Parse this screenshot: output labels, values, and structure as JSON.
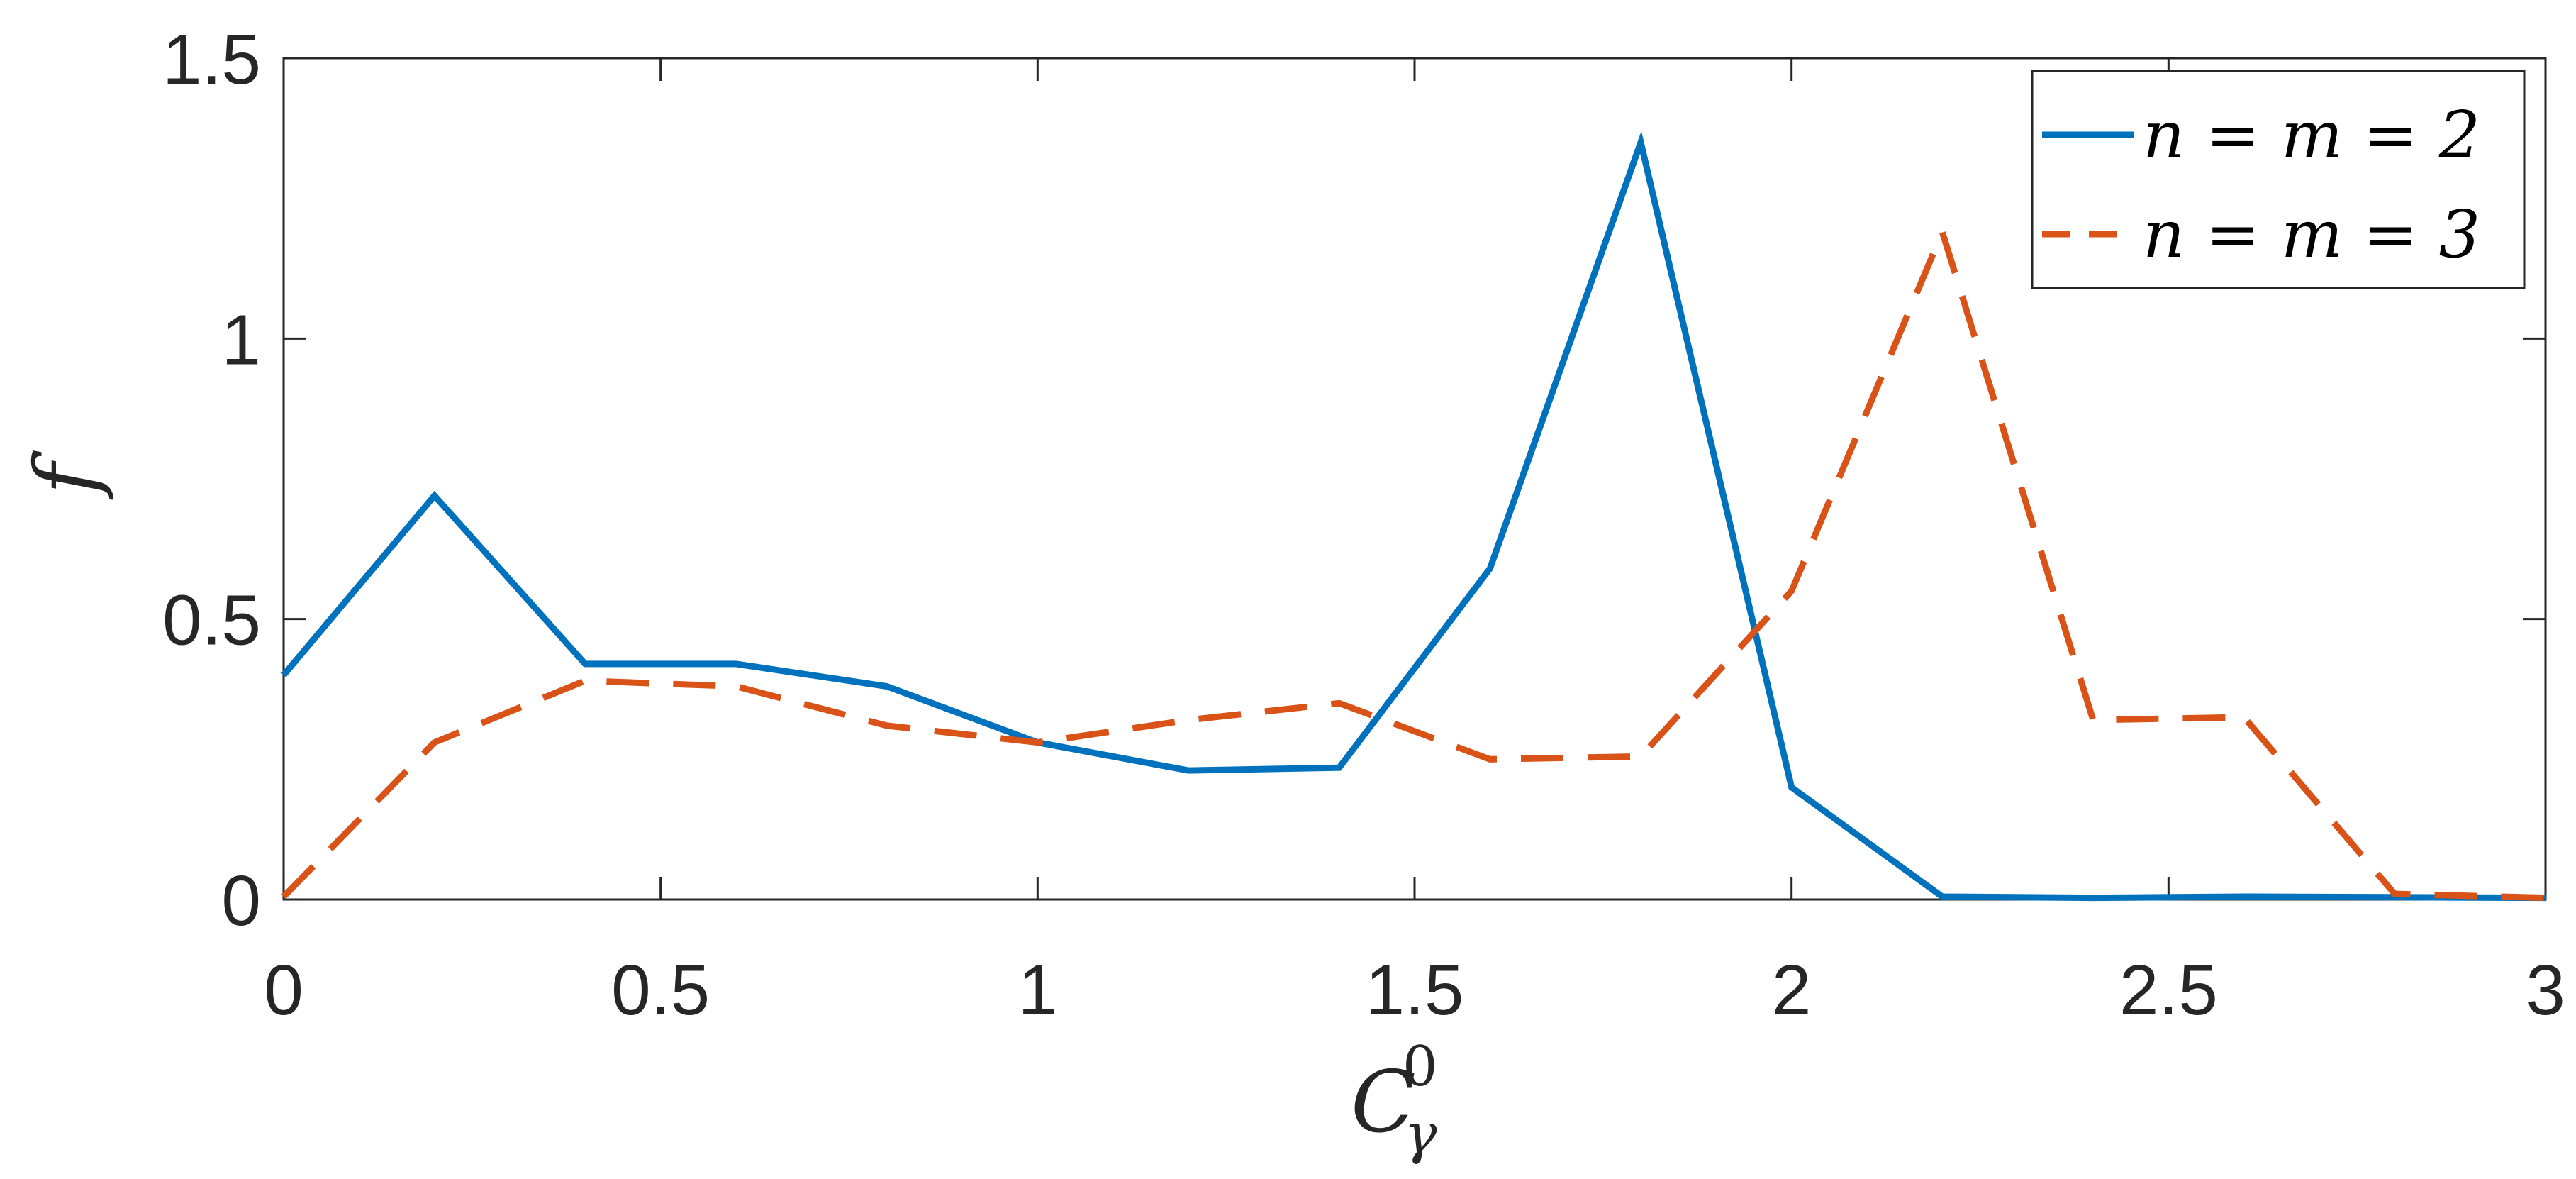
{
  "chart_data": {
    "type": "line",
    "title": "",
    "xlabel": {
      "base": "C",
      "sub": "γ",
      "sup": "0"
    },
    "ylabel": "f",
    "xlim": [
      0,
      3
    ],
    "ylim": [
      0,
      1.5
    ],
    "x_ticks": [
      0,
      0.5,
      1,
      1.5,
      2,
      2.5,
      3
    ],
    "x_tick_labels": [
      "0",
      "0.5",
      "1",
      "1.5",
      "2",
      "2.5",
      "3"
    ],
    "y_ticks": [
      0,
      0.5,
      1,
      1.5
    ],
    "y_tick_labels": [
      "0",
      "0.5",
      "1",
      "1.5"
    ],
    "grid": false,
    "legend_position": "top-right",
    "x": [
      0,
      0.2,
      0.4,
      0.6,
      0.8,
      1.0,
      1.2,
      1.4,
      1.6,
      1.8,
      2.0,
      2.2,
      2.4,
      2.6,
      2.8,
      3.0
    ],
    "series": [
      {
        "name": "n = m = 2",
        "color": "#0072BD",
        "dash": "solid",
        "values": [
          0.4,
          0.72,
          0.42,
          0.42,
          0.38,
          0.28,
          0.23,
          0.235,
          0.59,
          1.35,
          0.2,
          0.005,
          0.003,
          0.005,
          0.004,
          0.003
        ]
      },
      {
        "name": "n = m = 3",
        "color": "#D95319",
        "dash": "dashed",
        "values": [
          0.005,
          0.28,
          0.39,
          0.38,
          0.31,
          0.28,
          0.32,
          0.35,
          0.25,
          0.255,
          0.55,
          1.19,
          0.32,
          0.325,
          0.01,
          0.003
        ]
      }
    ]
  }
}
